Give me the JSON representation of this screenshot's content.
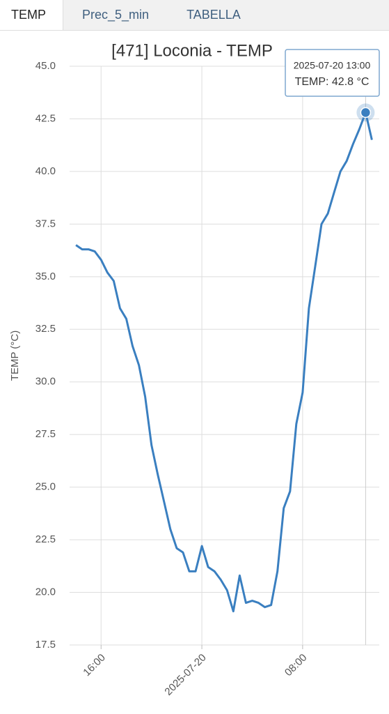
{
  "tabs": [
    "TEMP",
    "Prec_5_min",
    "TABELLA"
  ],
  "chart_data": {
    "type": "line",
    "title": "[471] Loconia - TEMP",
    "ylabel": "TEMP (°C)",
    "x": [
      "2025-07-19 14:00",
      "2025-07-19 14:30",
      "2025-07-19 15:00",
      "2025-07-19 15:30",
      "2025-07-19 16:00",
      "2025-07-19 16:30",
      "2025-07-19 17:00",
      "2025-07-19 17:30",
      "2025-07-19 18:00",
      "2025-07-19 18:30",
      "2025-07-19 19:00",
      "2025-07-19 19:30",
      "2025-07-19 20:00",
      "2025-07-19 20:30",
      "2025-07-19 21:00",
      "2025-07-19 21:30",
      "2025-07-19 22:00",
      "2025-07-19 22:30",
      "2025-07-19 23:00",
      "2025-07-19 23:30",
      "2025-07-20 00:00",
      "2025-07-20 00:30",
      "2025-07-20 01:00",
      "2025-07-20 01:30",
      "2025-07-20 02:00",
      "2025-07-20 02:30",
      "2025-07-20 03:00",
      "2025-07-20 03:30",
      "2025-07-20 04:00",
      "2025-07-20 04:30",
      "2025-07-20 05:00",
      "2025-07-20 05:30",
      "2025-07-20 06:00",
      "2025-07-20 06:30",
      "2025-07-20 07:00",
      "2025-07-20 07:30",
      "2025-07-20 08:00",
      "2025-07-20 08:30",
      "2025-07-20 09:00",
      "2025-07-20 09:30",
      "2025-07-20 10:00",
      "2025-07-20 10:30",
      "2025-07-20 11:00",
      "2025-07-20 11:30",
      "2025-07-20 12:00",
      "2025-07-20 12:30",
      "2025-07-20 13:00",
      "2025-07-20 13:30"
    ],
    "series": [
      {
        "color": "#3a7fc0",
        "values": [
          36.5,
          36.3,
          36.3,
          36.2,
          35.8,
          35.2,
          34.8,
          33.5,
          33.0,
          31.7,
          30.8,
          29.3,
          27.0,
          25.6,
          24.3,
          23.0,
          22.1,
          21.9,
          21.0,
          21.0,
          22.2,
          21.2,
          21.0,
          20.6,
          20.1,
          19.1,
          20.8,
          19.5,
          19.6,
          19.5,
          19.3,
          19.4,
          21.0,
          24.0,
          24.8,
          28.0,
          29.5,
          33.5,
          35.5,
          37.5,
          38.0,
          39.0,
          40.0,
          40.5,
          41.3,
          42.0,
          42.8,
          41.5
        ]
      }
    ],
    "xlim": [
      "2025-07-19 13:30",
      "2025-07-20 14:05"
    ],
    "xticks": [
      {
        "value": "2025-07-19 16:00",
        "label": "16:00"
      },
      {
        "value": "2025-07-20 00:00",
        "label": "2025-07-20"
      },
      {
        "value": "2025-07-20 08:00",
        "label": "08:00"
      }
    ],
    "ylim": [
      17.5,
      45
    ],
    "yticks": [
      17.5,
      {
        "value": 20,
        "label": "20.0"
      },
      22.5,
      {
        "value": 25,
        "label": "25.0"
      },
      27.5,
      {
        "value": 30,
        "label": "30.0"
      },
      32.5,
      {
        "value": 35,
        "label": "35.0"
      },
      37.5,
      {
        "value": 40,
        "label": "40.0"
      },
      42.5,
      {
        "value": 45,
        "label": "45.0"
      }
    ],
    "grid": true,
    "tooltip": {
      "index": 46,
      "title": "2025-07-20 13:00",
      "text": "TEMP: 42.8 °C"
    }
  }
}
